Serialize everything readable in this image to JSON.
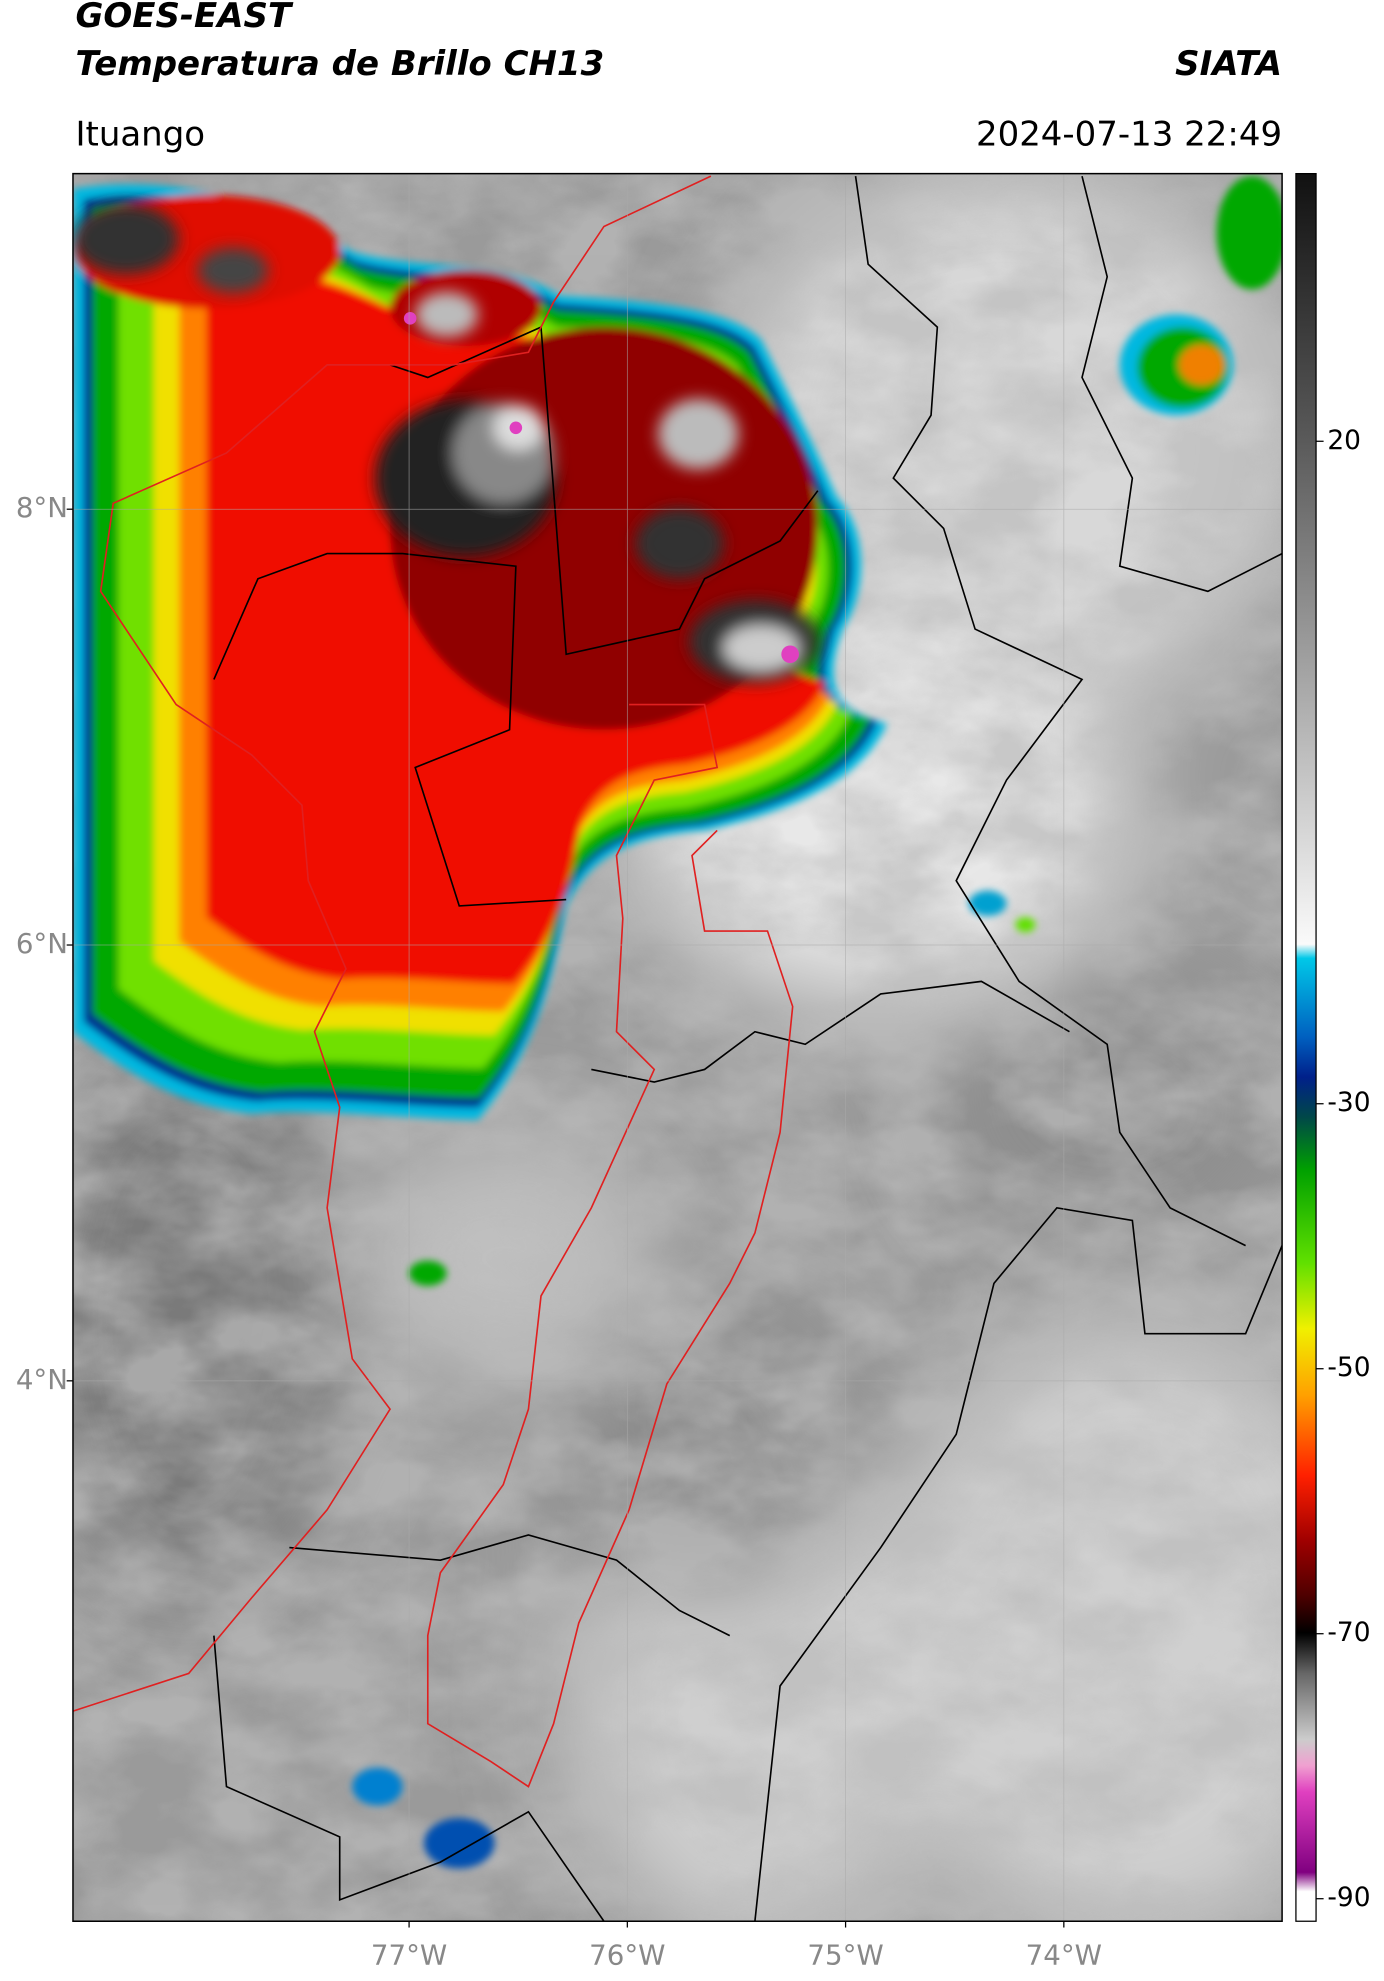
{
  "header": {
    "satellite": "GOES-EAST",
    "product": "Temperatura de Brillo CH13",
    "agency": "SIATA",
    "location": "Ituango",
    "datetime": "2024-07-13 22:49"
  },
  "map": {
    "lon_range": [
      -78.54,
      -73.0
    ],
    "lat_range": [
      1.52,
      9.54
    ],
    "lat_ticks": [
      {
        "value": 8,
        "label": "8°N"
      },
      {
        "value": 6,
        "label": "6°N"
      },
      {
        "value": 4,
        "label": "4°N"
      }
    ],
    "lon_ticks": [
      {
        "value": -77,
        "label": "77°W"
      },
      {
        "value": -76,
        "label": "76°W"
      },
      {
        "value": -75,
        "label": "75°W"
      },
      {
        "value": -74,
        "label": "74°W"
      }
    ],
    "grid": true
  },
  "colorbar": {
    "range": [
      -91.7,
      40.2
    ],
    "ticks": [
      20,
      -30,
      -50,
      -70,
      -90
    ]
  }
}
